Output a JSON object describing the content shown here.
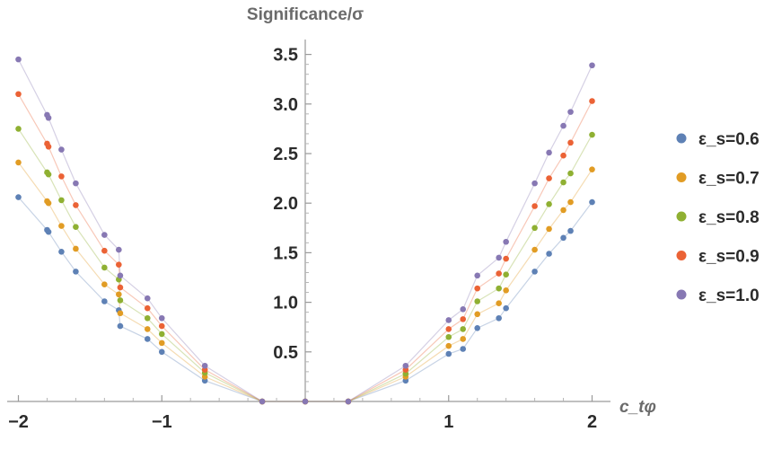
{
  "chart_data": {
    "type": "scatter",
    "title": "",
    "xlabel": "c_tφ",
    "ylabel": "Significance/σ",
    "xlim": [
      -2.05,
      2.35
    ],
    "ylim": [
      0,
      3.65
    ],
    "xticks": [
      -2,
      -1,
      1,
      2
    ],
    "xtick_labels": [
      "−2",
      "−1",
      "1",
      "2"
    ],
    "yticks": [
      0.5,
      1.0,
      1.5,
      2.0,
      2.5,
      3.0,
      3.5
    ],
    "ytick_labels": [
      "0.5",
      "1.0",
      "1.5",
      "2.0",
      "2.5",
      "3.0",
      "3.5"
    ],
    "legend_position": "right",
    "x": [
      -2.0,
      -1.8,
      -1.79,
      -1.7,
      -1.6,
      -1.4,
      -1.3,
      -1.29,
      -1.1,
      -1.0,
      -0.7,
      -0.3,
      0.0,
      0.3,
      0.7,
      1.0,
      1.1,
      1.2,
      1.35,
      1.4,
      1.6,
      1.7,
      1.8,
      1.85,
      2.0
    ],
    "series": [
      {
        "name": "ε_s=0.6",
        "color": "#5e81b5",
        "values": [
          2.06,
          1.73,
          1.71,
          1.51,
          1.31,
          1.01,
          0.92,
          0.76,
          0.63,
          0.5,
          0.21,
          0.0,
          0.0,
          0.0,
          0.21,
          0.48,
          0.53,
          0.74,
          0.84,
          0.94,
          1.31,
          1.49,
          1.65,
          1.72,
          2.01
        ]
      },
      {
        "name": "ε_s=0.7",
        "color": "#e19c24",
        "values": [
          2.41,
          2.02,
          2.0,
          1.77,
          1.54,
          1.18,
          1.08,
          0.89,
          0.73,
          0.59,
          0.25,
          0.0,
          0.0,
          0.0,
          0.25,
          0.56,
          0.63,
          0.88,
          0.99,
          1.12,
          1.53,
          1.74,
          1.93,
          2.01,
          2.34
        ]
      },
      {
        "name": "ε_s=0.8",
        "color": "#8fb032",
        "values": [
          2.75,
          2.31,
          2.29,
          2.03,
          1.76,
          1.35,
          1.23,
          1.02,
          0.84,
          0.68,
          0.29,
          0.0,
          0.0,
          0.0,
          0.28,
          0.65,
          0.73,
          1.01,
          1.14,
          1.28,
          1.75,
          1.99,
          2.21,
          2.3,
          2.69
        ]
      },
      {
        "name": "ε_s=0.9",
        "color": "#eb6235",
        "values": [
          3.1,
          2.6,
          2.57,
          2.27,
          1.98,
          1.52,
          1.38,
          1.15,
          0.94,
          0.76,
          0.32,
          0.0,
          0.0,
          0.0,
          0.32,
          0.73,
          0.83,
          1.14,
          1.29,
          1.44,
          1.97,
          2.25,
          2.48,
          2.61,
          3.03
        ]
      },
      {
        "name": "ε_s=1.0",
        "color": "#8778b3",
        "values": [
          3.45,
          2.89,
          2.86,
          2.54,
          2.2,
          1.68,
          1.53,
          1.27,
          1.04,
          0.84,
          0.36,
          0.0,
          0.0,
          0.0,
          0.36,
          0.82,
          0.93,
          1.27,
          1.45,
          1.61,
          2.2,
          2.51,
          2.78,
          2.92,
          3.39
        ]
      }
    ]
  }
}
